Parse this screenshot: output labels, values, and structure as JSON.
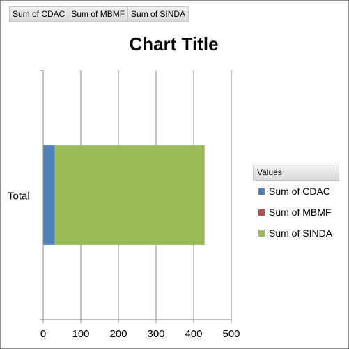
{
  "field_buttons": [
    "Sum of CDAC",
    "Sum of MBMF",
    "Sum of SINDA"
  ],
  "legend": {
    "header": "Values",
    "items": [
      {
        "label": "Sum of CDAC",
        "color": "#4f81bd"
      },
      {
        "label": "Sum of MBMF",
        "color": "#c0504d"
      },
      {
        "label": "Sum of SINDA",
        "color": "#9bbb59"
      }
    ]
  },
  "chart_data": {
    "type": "bar",
    "orientation": "horizontal",
    "stacked": true,
    "title": "Chart Title",
    "categories": [
      "Total"
    ],
    "series": [
      {
        "name": "Sum of CDAC",
        "values": [
          31
        ],
        "color": "#4f81bd"
      },
      {
        "name": "Sum of MBMF",
        "values": [
          0
        ],
        "color": "#c0504d"
      },
      {
        "name": "Sum of SINDA",
        "values": [
          398
        ],
        "color": "#9bbb59"
      }
    ],
    "xlim": [
      0,
      500
    ],
    "xticks": [
      0,
      100,
      200,
      300,
      400,
      500
    ],
    "grid": true,
    "legend_position": "right"
  }
}
